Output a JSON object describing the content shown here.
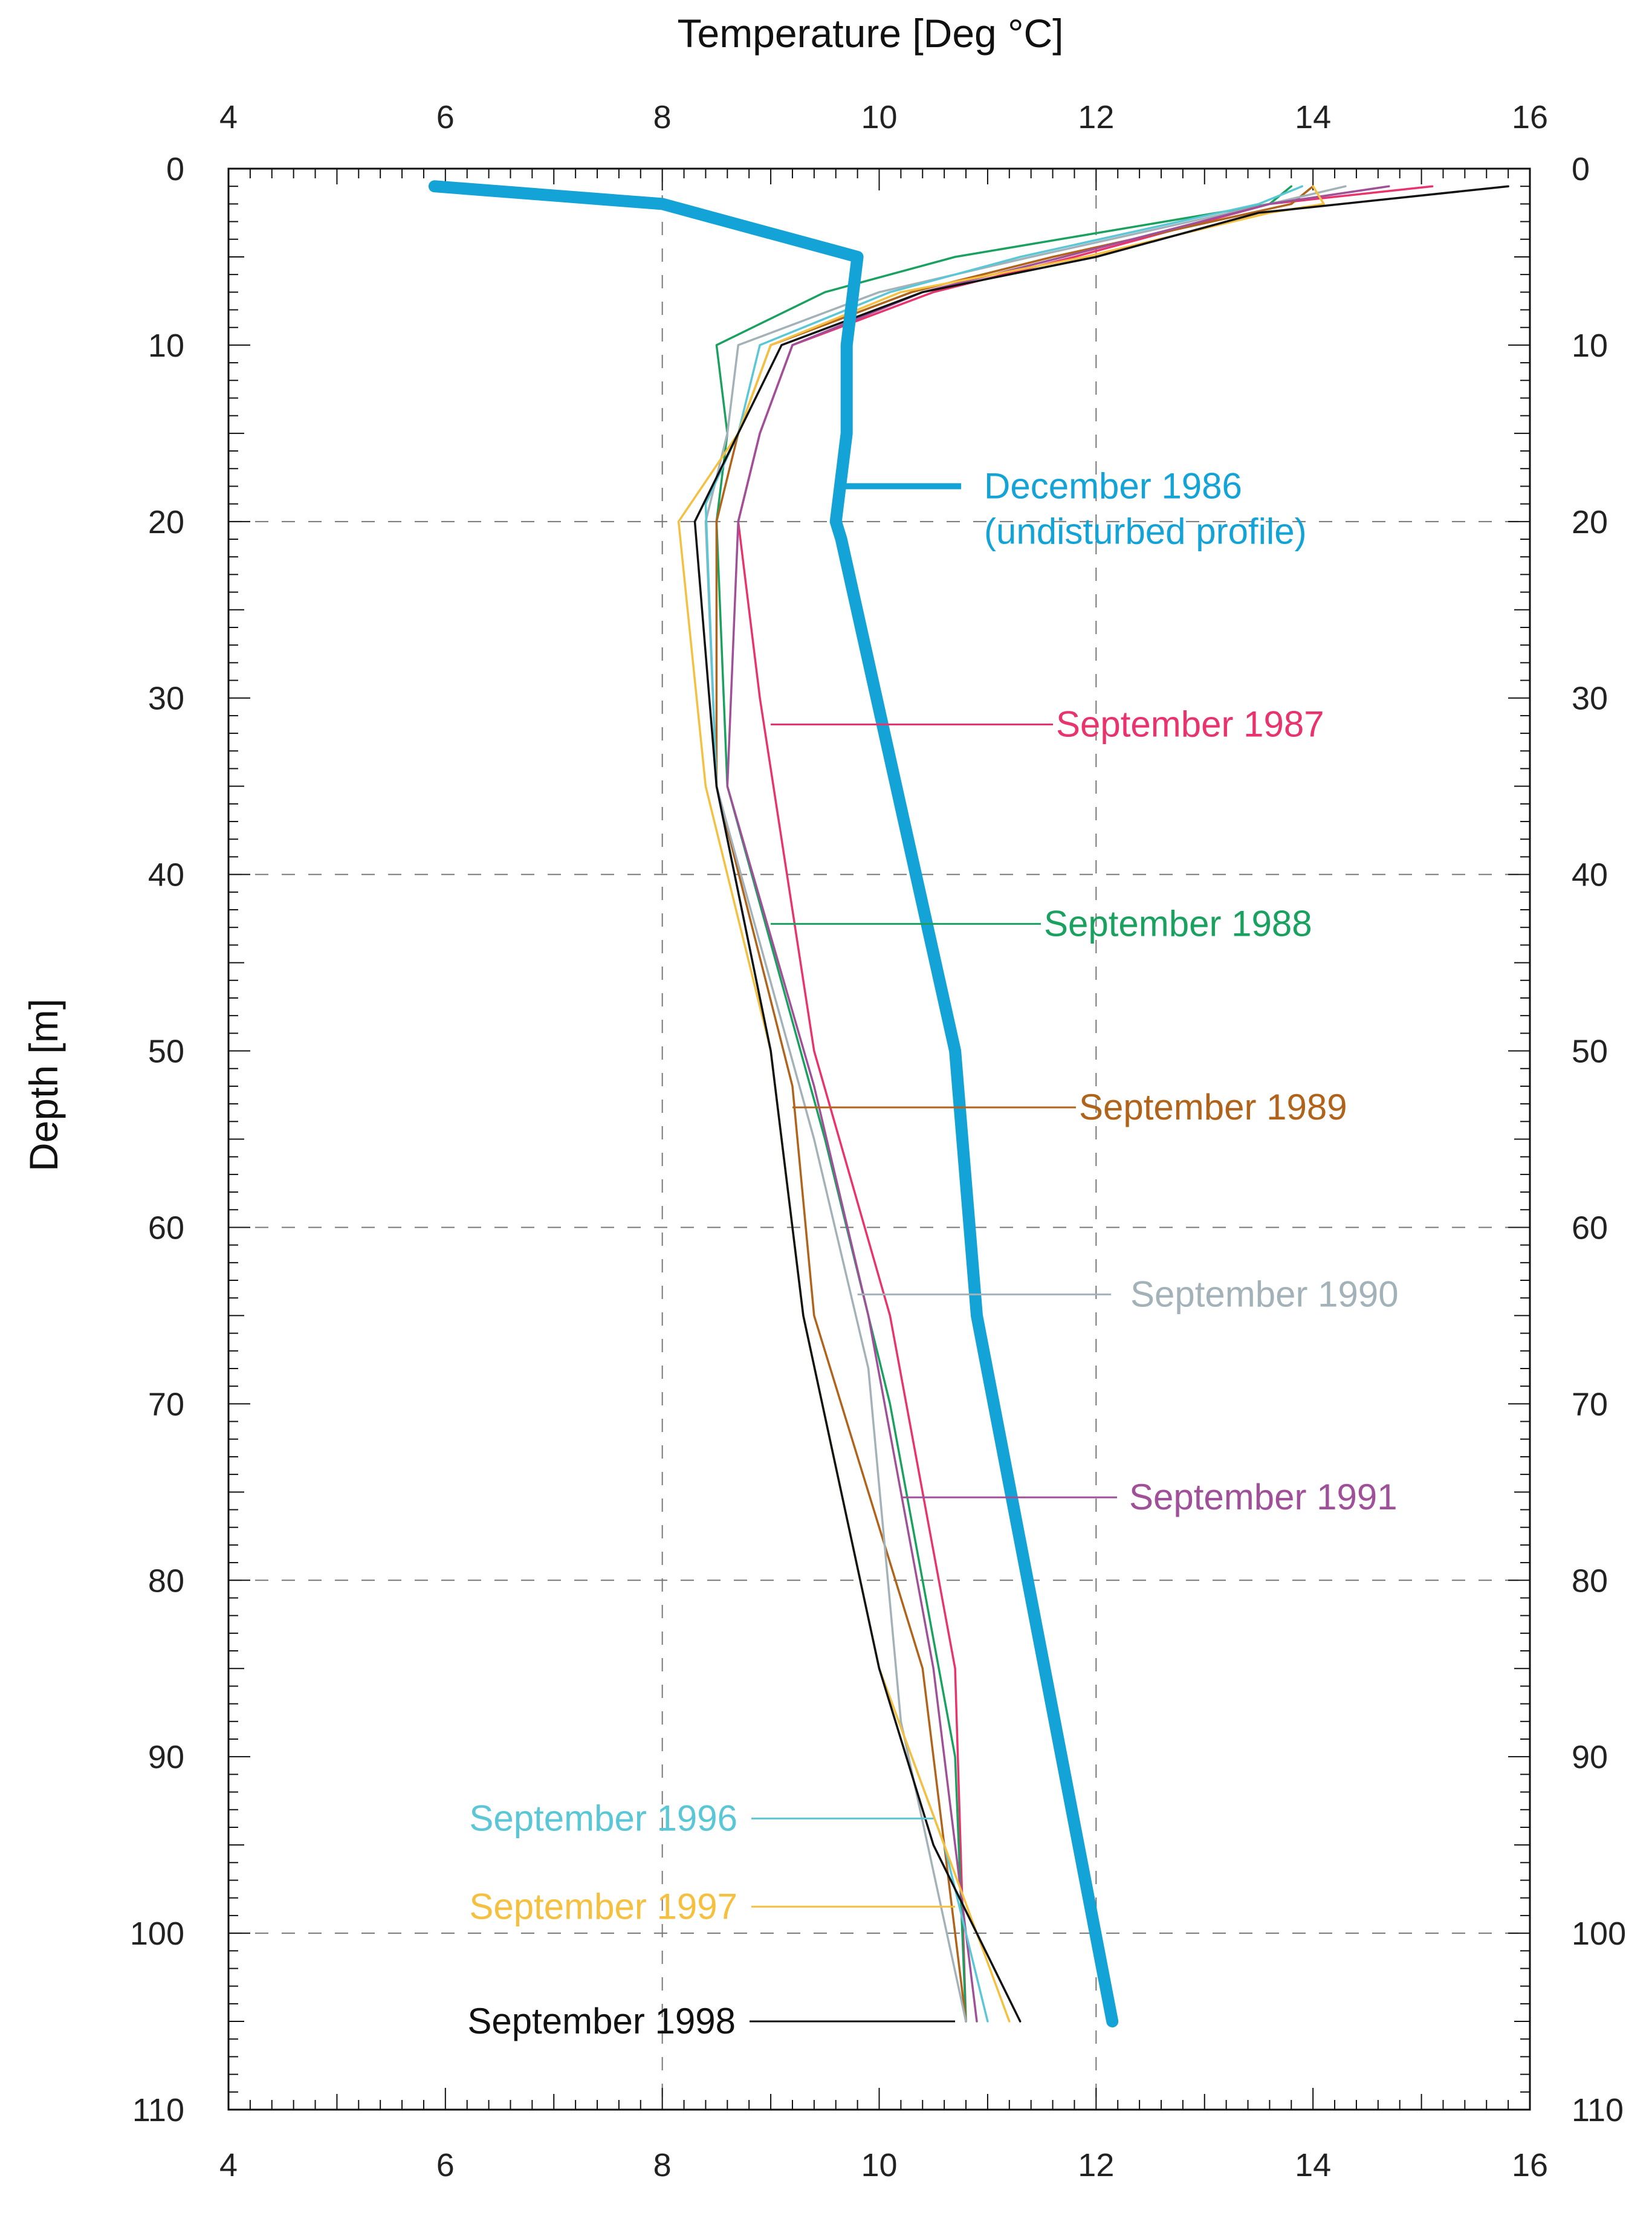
{
  "chart_data": {
    "type": "line",
    "x_axis_title": "Temperature [Deg °C]",
    "y_axis_title": "Depth [m]",
    "xlim": [
      4,
      16
    ],
    "ylim": [
      0,
      110
    ],
    "y_inverted": true,
    "x_ticks": [
      "4",
      "6",
      "8",
      "10",
      "12",
      "14",
      "16"
    ],
    "y_ticks": [
      "0",
      "10",
      "20",
      "30",
      "40",
      "50",
      "60",
      "70",
      "80",
      "90",
      "100",
      "110"
    ],
    "grid": "dashed, x at 8 and 12; y at 20, 40, 60, 80, 100",
    "series": [
      {
        "name": "September 1987",
        "color": "#e8336d",
        "label_text": "September 1987",
        "label_anchor": [
          9.0,
          31.5
        ],
        "points": [
          [
            15.1,
            1
          ],
          [
            13.6,
            2
          ],
          [
            11.8,
            5
          ],
          [
            10.5,
            7
          ],
          [
            9.2,
            10
          ],
          [
            8.9,
            15
          ],
          [
            8.7,
            20
          ],
          [
            8.9,
            30
          ],
          [
            9.4,
            50
          ],
          [
            10.1,
            65
          ],
          [
            10.7,
            85
          ],
          [
            10.8,
            105
          ]
        ]
      },
      {
        "name": "September 1988",
        "color": "#1aa160",
        "label_text": "September 1988",
        "label_anchor": [
          9.0,
          42.8
        ],
        "points": [
          [
            13.8,
            1
          ],
          [
            13.6,
            2
          ],
          [
            10.7,
            5
          ],
          [
            9.5,
            7
          ],
          [
            8.5,
            10
          ],
          [
            8.6,
            15
          ],
          [
            8.5,
            20
          ],
          [
            8.6,
            35
          ],
          [
            9.5,
            55
          ],
          [
            10.1,
            70
          ],
          [
            10.7,
            90
          ],
          [
            10.8,
            105
          ]
        ]
      },
      {
        "name": "September 1989",
        "color": "#b0631a",
        "label_text": "September 1989",
        "label_anchor": [
          9.2,
          53.2
        ],
        "points": [
          [
            14.0,
            1
          ],
          [
            13.8,
            2
          ],
          [
            11.6,
            5
          ],
          [
            10.3,
            7
          ],
          [
            9.0,
            10
          ],
          [
            8.7,
            15
          ],
          [
            8.5,
            20
          ],
          [
            8.5,
            35
          ],
          [
            9.2,
            52
          ],
          [
            9.4,
            65
          ],
          [
            10.4,
            85
          ],
          [
            10.8,
            105
          ]
        ]
      },
      {
        "name": "September 1990",
        "color": "#a3b2b8",
        "label_text": "September 1990",
        "label_anchor": [
          9.8,
          63.8
        ],
        "points": [
          [
            14.3,
            1
          ],
          [
            13.6,
            2
          ],
          [
            11.4,
            5
          ],
          [
            10.0,
            7
          ],
          [
            8.7,
            10
          ],
          [
            8.6,
            15
          ],
          [
            8.4,
            20
          ],
          [
            8.5,
            35
          ],
          [
            9.4,
            55
          ],
          [
            9.9,
            68
          ],
          [
            10.2,
            88
          ],
          [
            10.8,
            105
          ]
        ]
      },
      {
        "name": "September 1991",
        "color": "#a05098",
        "label_text": "September 1991",
        "label_anchor": [
          10.2,
          75.3
        ],
        "points": [
          [
            14.7,
            1
          ],
          [
            13.6,
            2
          ],
          [
            11.7,
            5
          ],
          [
            10.4,
            7
          ],
          [
            9.2,
            10
          ],
          [
            8.9,
            15
          ],
          [
            8.7,
            20
          ],
          [
            8.6,
            35
          ],
          [
            9.4,
            52
          ],
          [
            9.9,
            65
          ],
          [
            10.5,
            85
          ],
          [
            10.9,
            105
          ]
        ]
      },
      {
        "name": "September 1996",
        "color": "#5bc7d6",
        "label_text": "September 1996",
        "label_anchor": [
          10.5,
          93.5
        ],
        "points": [
          [
            13.9,
            1
          ],
          [
            13.5,
            2
          ],
          [
            11.3,
            5
          ],
          [
            10.1,
            7
          ],
          [
            8.9,
            10
          ],
          [
            8.7,
            15
          ],
          [
            8.4,
            19
          ],
          [
            8.5,
            35
          ],
          [
            9.0,
            50
          ],
          [
            9.3,
            65
          ],
          [
            10.0,
            85
          ],
          [
            10.6,
            95
          ],
          [
            11.0,
            105
          ]
        ]
      },
      {
        "name": "September 1997",
        "color": "#f5c040",
        "label_text": "September 1997",
        "label_anchor": [
          10.7,
          98.5
        ],
        "points": [
          [
            14.0,
            1
          ],
          [
            14.1,
            2
          ],
          [
            13.6,
            2.5
          ],
          [
            11.9,
            5
          ],
          [
            10.2,
            7
          ],
          [
            9.0,
            10
          ],
          [
            8.7,
            15
          ],
          [
            8.15,
            20
          ],
          [
            8.4,
            35
          ],
          [
            9.0,
            50
          ],
          [
            9.3,
            65
          ],
          [
            10.0,
            85
          ],
          [
            10.6,
            95
          ],
          [
            11.2,
            105
          ]
        ]
      },
      {
        "name": "September 1998",
        "color": "#111111",
        "label_text": "September 1998",
        "label_anchor": [
          10.7,
          105.0
        ],
        "points": [
          [
            15.8,
            1
          ],
          [
            13.5,
            2.5
          ],
          [
            12.0,
            5
          ],
          [
            10.4,
            7
          ],
          [
            9.1,
            10
          ],
          [
            8.7,
            15
          ],
          [
            8.3,
            20
          ],
          [
            8.5,
            35
          ],
          [
            9.0,
            50
          ],
          [
            9.3,
            65
          ],
          [
            10.0,
            85
          ],
          [
            10.5,
            95
          ],
          [
            11.3,
            105
          ]
        ]
      },
      {
        "name": "December 1986",
        "color": "#13a3d6",
        "label_text": "December 1986",
        "label_text_2": "(undisturbed profile)",
        "label_anchor": [
          9.65,
          18.0
        ],
        "thick": true,
        "points": [
          [
            5.9,
            1
          ],
          [
            8.0,
            2
          ],
          [
            9.8,
            5
          ],
          [
            9.7,
            10
          ],
          [
            9.7,
            15
          ],
          [
            9.6,
            20
          ],
          [
            9.65,
            21
          ],
          [
            10.7,
            50
          ],
          [
            10.9,
            65
          ],
          [
            12.15,
            105
          ]
        ]
      }
    ]
  }
}
